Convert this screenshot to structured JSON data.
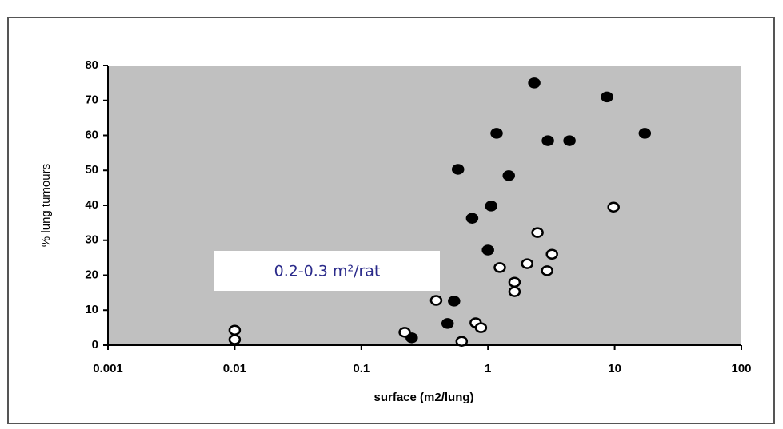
{
  "chart_data": {
    "type": "scatter",
    "xlabel": "surface (m2/lung)",
    "ylabel": "% lung tumours",
    "annotation": "0.2-0.3 m²/rat",
    "xscale": "log",
    "xlim": [
      0.001,
      100
    ],
    "xticks": [
      0.001,
      0.01,
      0.1,
      1,
      10,
      100
    ],
    "ylim": [
      0,
      80
    ],
    "yticks": [
      0,
      10,
      20,
      30,
      40,
      50,
      60,
      70,
      80
    ],
    "grid": false,
    "plot_background": "#c0c0c0",
    "series": [
      {
        "color": "#000000",
        "x": [
          2.32,
          8.7,
          1.17,
          2.97,
          4.4,
          17.3,
          0.58,
          1.46,
          1.06,
          0.75,
          1.0,
          0.54,
          0.48,
          0.25
        ],
        "values": [
          75,
          71,
          60.6,
          58.5,
          58.5,
          60.6,
          50.3,
          48.5,
          39.8,
          36.3,
          27.2,
          12.6,
          6.2,
          2.1
        ]
      },
      {
        "color": "#ffffff",
        "x": [
          0.01,
          0.01,
          9.8,
          2.46,
          3.2,
          1.24,
          2.04,
          2.93,
          1.62,
          1.62,
          0.39,
          0.8,
          0.88,
          0.22,
          0.62
        ],
        "values": [
          4.3,
          1.6,
          39.5,
          32.2,
          26,
          22.2,
          23.3,
          21.3,
          18,
          15.3,
          12.8,
          6.4,
          5,
          3.7,
          1.1
        ]
      }
    ]
  }
}
